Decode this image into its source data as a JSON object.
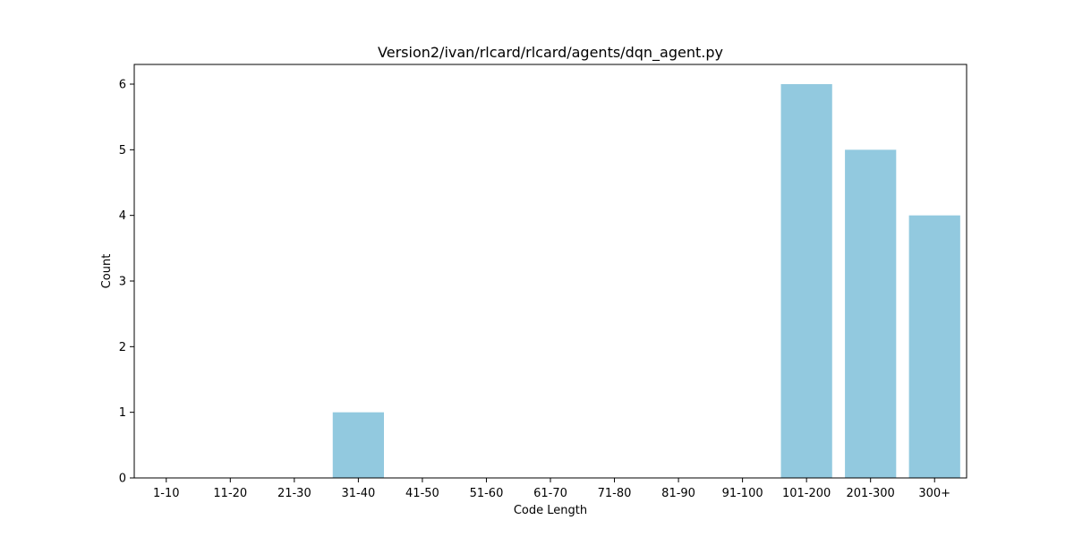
{
  "chart_data": {
    "type": "bar",
    "title": "Version2/ivan/rlcard/rlcard/agents/dqn_agent.py",
    "xlabel": "Code Length",
    "ylabel": "Count",
    "categories": [
      "1-10",
      "11-20",
      "21-30",
      "31-40",
      "41-50",
      "51-60",
      "61-70",
      "71-80",
      "81-90",
      "91-100",
      "101-200",
      "201-300",
      "300+"
    ],
    "values": [
      0,
      0,
      0,
      1,
      0,
      0,
      0,
      0,
      0,
      0,
      6,
      5,
      4
    ],
    "ylim": [
      0,
      6.3
    ],
    "yticks": [
      0,
      1,
      2,
      3,
      4,
      5,
      6
    ],
    "bar_color": "#92c9df",
    "axis_color": "#000000",
    "grid": false,
    "legend": "none"
  }
}
